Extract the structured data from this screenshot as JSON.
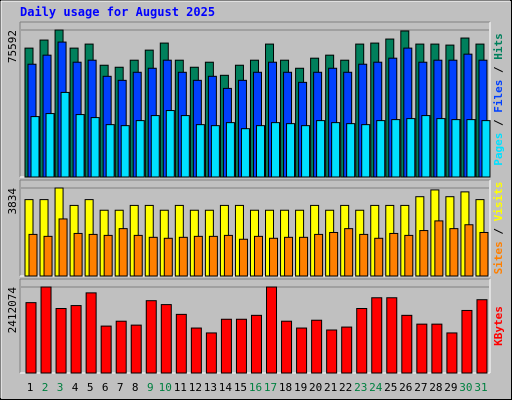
{
  "chart_data": [
    {
      "type": "bar",
      "title": "Daily usage for August 2025",
      "ylim": [
        0,
        75592
      ],
      "yticks": [
        75592
      ],
      "series": [
        {
          "name": "Hits",
          "color": "#00805c",
          "values": [
            66278,
            70421,
            75592,
            66278,
            68350,
            57476,
            56440,
            60065,
            65243,
            68867,
            60065,
            56440,
            59029,
            52298,
            57476,
            60065,
            68350,
            60065,
            55922,
            61100,
            62654,
            60065,
            68350,
            68867,
            70939,
            75080,
            68350,
            68350,
            67832,
            71456,
            68350
          ]
        },
        {
          "name": "Files",
          "color": "#0040ff",
          "values": [
            57994,
            62654,
            69385,
            59029,
            60065,
            51780,
            49709,
            53851,
            55922,
            60065,
            53851,
            49709,
            51780,
            45566,
            49709,
            53851,
            59029,
            53851,
            48673,
            53851,
            55922,
            53851,
            57994,
            59029,
            61100,
            66278,
            59029,
            60065,
            60065,
            63172,
            60065
          ]
        },
        {
          "name": "Pages",
          "color": "#00e0ff",
          "values": [
            31068,
            32621,
            43495,
            32104,
            30550,
            26926,
            26408,
            28997,
            31586,
            34175,
            31586,
            26926,
            26408,
            27961,
            24854,
            26408,
            27961,
            27443,
            26408,
            28997,
            27961,
            27443,
            26926,
            28997,
            29515,
            30032,
            31586,
            30032,
            29515,
            29515,
            28997
          ]
        }
      ],
      "legend_separator": " / "
    },
    {
      "type": "bar",
      "ylim": [
        0,
        3834
      ],
      "yticks": [
        3834
      ],
      "series": [
        {
          "name": "Visits",
          "color": "#ffff00",
          "values": [
            3328,
            3328,
            3834,
            3075,
            3328,
            2865,
            2865,
            3075,
            3075,
            2865,
            3075,
            2865,
            2865,
            3075,
            3075,
            2865,
            2865,
            2865,
            2865,
            3075,
            2865,
            3075,
            2865,
            3075,
            3075,
            3075,
            3455,
            3750,
            3455,
            3665,
            3328
          ]
        },
        {
          "name": "Sites",
          "color": "#ff8000",
          "values": [
            1812,
            1727,
            2486,
            1854,
            1812,
            1769,
            2064,
            1769,
            1685,
            1643,
            1685,
            1727,
            1727,
            1769,
            1601,
            1727,
            1643,
            1685,
            1685,
            1812,
            1896,
            2064,
            1812,
            1643,
            1854,
            1769,
            1980,
            2401,
            2064,
            2233,
            1896
          ]
        }
      ],
      "legend_separator": " / "
    },
    {
      "type": "bar",
      "ylim": [
        0,
        2412074
      ],
      "yticks": [
        2412074
      ],
      "series": [
        {
          "name": "KBytes",
          "color": "#ff0000",
          "values": [
            1973520,
            2412074,
            1809060,
            1891290,
            2247620,
            1315680,
            1452730,
            1343090,
            2028340,
            1918700,
            1644600,
            1260860,
            1123810,
            1507550,
            1507550,
            1617190,
            2412074,
            1452730,
            1260860,
            1480140,
            1206040,
            1288270,
            1809060,
            2110570,
            2110570,
            1617190,
            1370500,
            1370500,
            1123810,
            1754240,
            2055750
          ]
        }
      ],
      "categories": [
        "1",
        "2",
        "3",
        "4",
        "5",
        "6",
        "7",
        "8",
        "9",
        "10",
        "11",
        "12",
        "13",
        "14",
        "15",
        "16",
        "17",
        "18",
        "19",
        "20",
        "21",
        "22",
        "23",
        "24",
        "25",
        "26",
        "27",
        "28",
        "29",
        "30",
        "31"
      ],
      "category_colors": [
        "#000000",
        "#008040",
        "#008040",
        "#000000",
        "#000000",
        "#000000",
        "#000000",
        "#000000",
        "#008040",
        "#008040",
        "#000000",
        "#000000",
        "#000000",
        "#000000",
        "#000000",
        "#008040",
        "#008040",
        "#000000",
        "#000000",
        "#000000",
        "#000000",
        "#000000",
        "#008040",
        "#008040",
        "#000000",
        "#000000",
        "#000000",
        "#000000",
        "#000000",
        "#008040",
        "#008040"
      ]
    }
  ]
}
